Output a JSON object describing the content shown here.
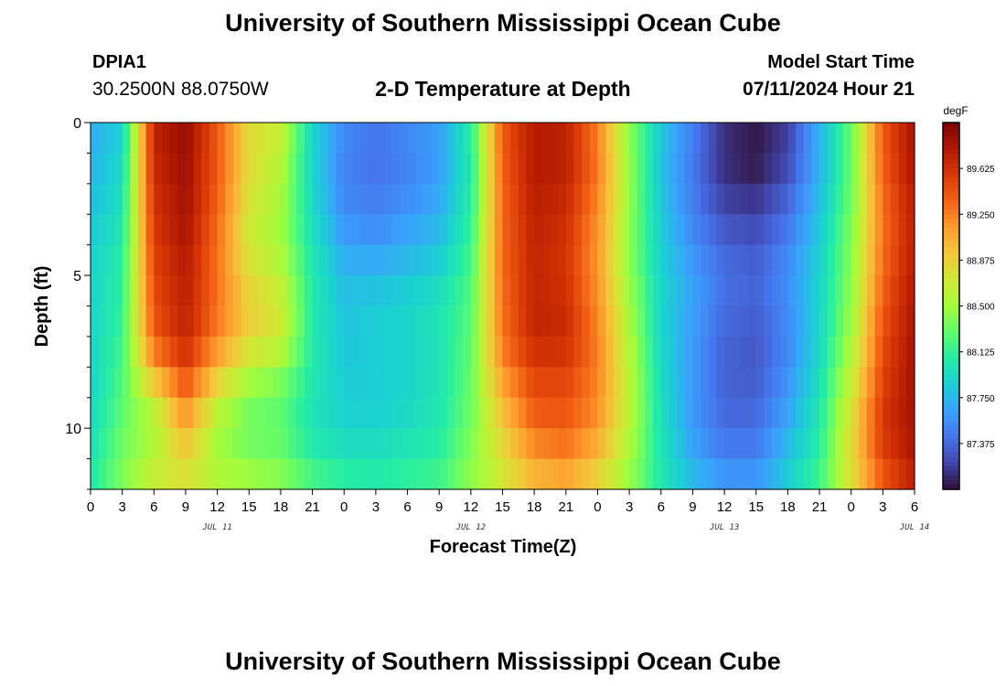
{
  "header": {
    "title": "University of Southern Mississippi Ocean Cube",
    "station": "DPIA1",
    "coords": "30.2500N  88.0750W",
    "subtitle": "2-D Temperature at Depth",
    "model_start_label": "Model Start Time",
    "model_start_value": "07/11/2024 Hour 21"
  },
  "footer": {
    "title": "University of Southern Mississippi Ocean Cube"
  },
  "chart_data": {
    "type": "heatmap",
    "title": "2-D Temperature at Depth",
    "xlabel": "Forecast Time(Z)",
    "ylabel": "Depth (ft)",
    "colorbar_label": "degF",
    "x_tick_labels": [
      "0",
      "3",
      "6",
      "9",
      "12",
      "15",
      "18",
      "21",
      "0",
      "3",
      "6",
      "9",
      "12",
      "15",
      "18",
      "21",
      "0",
      "3",
      "6",
      "9",
      "12",
      "15",
      "18",
      "21",
      "0",
      "3",
      "6"
    ],
    "x_date_labels": [
      {
        "label": "JUL 11",
        "at_hour": 12
      },
      {
        "label": "JUL 12",
        "at_hour": 36
      },
      {
        "label": "JUL 13",
        "at_hour": 60
      },
      {
        "label": "JUL 14",
        "at_hour": 78
      }
    ],
    "x_range_hours": [
      0,
      78
    ],
    "depth_range_ft": [
      0,
      12
    ],
    "y_ticks": [
      0,
      5,
      10
    ],
    "colorbar_ticks": [
      87.375,
      87.75,
      88.125,
      88.5,
      88.875,
      89.25,
      89.625
    ],
    "color_range": [
      87.0,
      90.0
    ],
    "colormap": [
      "#30123b",
      "#4145ab",
      "#4675ed",
      "#39a2fc",
      "#1bcfd4",
      "#24eca6",
      "#61fc6c",
      "#a4fc3b",
      "#d1e834",
      "#f3c63a",
      "#fe9b2d",
      "#f36315",
      "#d93806",
      "#b11901",
      "#7a0403"
    ],
    "depth_levels_ft": [
      0,
      1,
      2,
      3,
      4,
      5,
      6,
      7,
      8,
      9,
      10,
      11,
      12
    ],
    "time_hours": [
      0,
      3,
      6,
      9,
      12,
      15,
      18,
      21,
      24,
      27,
      30,
      33,
      36,
      39,
      42,
      45,
      48,
      51,
      54,
      57,
      60,
      63,
      66,
      69,
      72,
      75,
      78
    ],
    "temperature_degF": [
      [
        87.7,
        87.85,
        89.7,
        89.9,
        89.4,
        88.8,
        88.7,
        87.9,
        87.55,
        87.45,
        87.55,
        87.65,
        88.1,
        89.4,
        89.75,
        89.7,
        89.2,
        88.4,
        87.85,
        87.5,
        87.15,
        87.05,
        87.2,
        87.75,
        88.3,
        89.4,
        89.85
      ],
      [
        87.7,
        87.9,
        89.7,
        89.9,
        89.4,
        88.8,
        88.6,
        87.9,
        87.5,
        87.4,
        87.5,
        87.6,
        88.05,
        89.4,
        89.8,
        89.75,
        89.3,
        88.45,
        87.8,
        87.45,
        87.1,
        87.0,
        87.2,
        87.7,
        88.3,
        89.4,
        89.85
      ],
      [
        87.75,
        87.95,
        89.65,
        89.85,
        89.4,
        88.8,
        88.55,
        87.9,
        87.5,
        87.45,
        87.5,
        87.65,
        88.05,
        89.35,
        89.75,
        89.7,
        89.25,
        88.45,
        87.8,
        87.45,
        87.15,
        87.1,
        87.3,
        87.75,
        88.3,
        89.35,
        89.8
      ],
      [
        87.8,
        88.0,
        89.6,
        89.85,
        89.35,
        88.7,
        88.5,
        87.95,
        87.55,
        87.5,
        87.6,
        87.7,
        88.1,
        89.35,
        89.75,
        89.65,
        89.2,
        88.45,
        87.85,
        87.5,
        87.25,
        87.2,
        87.4,
        87.8,
        88.35,
        89.3,
        89.75
      ],
      [
        87.85,
        88.05,
        89.55,
        89.8,
        89.3,
        88.7,
        88.5,
        88.0,
        87.65,
        87.6,
        87.7,
        87.8,
        88.15,
        89.35,
        89.7,
        89.6,
        89.15,
        88.4,
        87.85,
        87.55,
        87.35,
        87.3,
        87.5,
        87.85,
        88.4,
        89.3,
        89.75
      ],
      [
        87.9,
        88.1,
        89.5,
        89.75,
        89.3,
        88.8,
        88.6,
        88.05,
        87.75,
        87.75,
        87.8,
        87.9,
        88.2,
        89.35,
        89.7,
        89.6,
        89.15,
        88.45,
        87.9,
        87.65,
        87.4,
        87.35,
        87.55,
        87.9,
        88.4,
        89.35,
        89.8
      ],
      [
        87.9,
        88.1,
        89.45,
        89.75,
        89.3,
        88.9,
        88.7,
        88.05,
        87.8,
        87.85,
        87.9,
        88.0,
        88.25,
        89.3,
        89.7,
        89.65,
        89.2,
        88.5,
        87.9,
        87.65,
        87.4,
        87.35,
        87.55,
        87.9,
        88.45,
        89.4,
        89.8
      ],
      [
        87.9,
        88.15,
        89.4,
        89.7,
        89.25,
        88.85,
        88.7,
        88.05,
        87.8,
        87.85,
        87.9,
        88.0,
        88.25,
        89.3,
        89.7,
        89.65,
        89.25,
        88.55,
        87.9,
        87.6,
        87.35,
        87.3,
        87.5,
        87.9,
        88.5,
        89.45,
        89.85
      ],
      [
        87.9,
        88.2,
        89.1,
        89.55,
        89.0,
        88.6,
        88.45,
        88.05,
        87.85,
        87.85,
        87.9,
        88.0,
        88.3,
        89.2,
        89.55,
        89.55,
        89.25,
        88.6,
        87.95,
        87.6,
        87.35,
        87.3,
        87.55,
        87.95,
        88.6,
        89.5,
        89.85
      ],
      [
        87.9,
        88.25,
        88.7,
        89.3,
        88.7,
        88.4,
        88.3,
        88.0,
        87.85,
        87.85,
        87.9,
        88.0,
        88.3,
        89.0,
        89.45,
        89.45,
        89.2,
        88.6,
        87.95,
        87.6,
        87.35,
        87.35,
        87.6,
        88.0,
        88.7,
        89.55,
        89.85
      ],
      [
        87.95,
        88.3,
        88.5,
        89.05,
        88.5,
        88.3,
        88.25,
        88.0,
        87.9,
        87.9,
        87.95,
        88.05,
        88.35,
        88.9,
        89.35,
        89.4,
        89.15,
        88.6,
        88.0,
        87.6,
        87.4,
        87.4,
        87.7,
        88.05,
        88.8,
        89.6,
        89.85
      ],
      [
        88.0,
        88.35,
        88.6,
        88.85,
        88.5,
        88.4,
        88.35,
        88.1,
        88.0,
        88.0,
        88.05,
        88.1,
        88.4,
        88.75,
        89.1,
        89.2,
        88.95,
        88.5,
        88.0,
        87.7,
        87.5,
        87.5,
        87.8,
        88.1,
        88.8,
        89.5,
        89.8
      ],
      [
        88.05,
        88.4,
        88.7,
        88.7,
        88.6,
        88.55,
        88.45,
        88.25,
        88.15,
        88.1,
        88.15,
        88.2,
        88.45,
        88.7,
        88.95,
        89.0,
        88.8,
        88.45,
        88.05,
        87.8,
        87.65,
        87.65,
        87.9,
        88.2,
        88.75,
        89.35,
        89.7
      ]
    ]
  }
}
